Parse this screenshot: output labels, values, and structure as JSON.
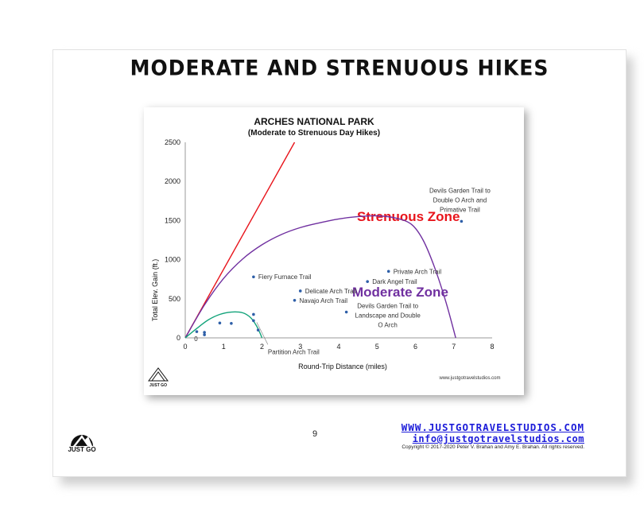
{
  "slide": {
    "title": "MODERATE AND STRENUOUS HIKES",
    "page_number": "9",
    "website": "WWW.JUSTGOTRAVELSTUDIOS.COM",
    "email": "info@justgotravelstudios.com",
    "copyright": "Copyright © 2017-2020 Peter V. Brahan and Amy E. Brahan.  All rights reserved.",
    "logo_text": "JUST GO"
  },
  "colors": {
    "strenuous": "#e8141b",
    "moderate": "#7030a0",
    "easy": "#12a37a",
    "points": "#2e5fa8",
    "link": "#1b1bd9"
  },
  "chart_data": {
    "type": "scatter",
    "title": "ARCHES NATIONAL PARK",
    "subtitle": "(Moderate to Strenuous Day Hikes)",
    "xlabel": "Round-Trip Distance (miles)",
    "ylabel": "Total Elev. Gain (ft.)",
    "xlim": [
      0,
      8
    ],
    "ylim": [
      0,
      2500
    ],
    "xticks": [
      "0",
      "1",
      "2",
      "3",
      "4",
      "5",
      "6",
      "7",
      "8"
    ],
    "yticks": [
      "0",
      "500",
      "1000",
      "1500",
      "2000",
      "2500"
    ],
    "grid": false,
    "watermark": "www.justgotravelstudios.com",
    "zones": [
      {
        "name": "Strenuous Zone",
        "color": "#e8141b"
      },
      {
        "name": "Moderate Zone",
        "color": "#7030a0"
      }
    ],
    "strenuous_line": [
      [
        0,
        0
      ],
      [
        2.85,
        2500
      ]
    ],
    "moderate_curve": [
      [
        0,
        0
      ],
      [
        0.5,
        420
      ],
      [
        1,
        760
      ],
      [
        1.5,
        1010
      ],
      [
        2,
        1190
      ],
      [
        2.5,
        1320
      ],
      [
        3,
        1410
      ],
      [
        3.5,
        1470
      ],
      [
        4,
        1520
      ],
      [
        4.5,
        1550
      ],
      [
        5,
        1560
      ],
      [
        5.5,
        1530
      ],
      [
        5.9,
        1450
      ],
      [
        6.2,
        1250
      ],
      [
        6.5,
        900
      ],
      [
        6.8,
        450
      ],
      [
        7.05,
        0
      ]
    ],
    "easy_curve": [
      [
        0,
        0
      ],
      [
        0.3,
        120
      ],
      [
        0.6,
        230
      ],
      [
        0.9,
        300
      ],
      [
        1.2,
        330
      ],
      [
        1.5,
        320
      ],
      [
        1.7,
        260
      ],
      [
        1.85,
        160
      ],
      [
        1.95,
        60
      ],
      [
        2.0,
        0
      ]
    ],
    "points": [
      {
        "x": 1.78,
        "y": 780,
        "label": "Fiery Furnace Trail"
      },
      {
        "x": 3.0,
        "y": 600,
        "label": "Delicate Arch Trail"
      },
      {
        "x": 2.85,
        "y": 480,
        "label": "Navajo Arch Trail"
      },
      {
        "x": 4.75,
        "y": 720,
        "label": "Dark Angel Trail"
      },
      {
        "x": 5.3,
        "y": 850,
        "label": "Private Arch Trail"
      },
      {
        "x": 4.2,
        "y": 330,
        "label": "Devils Garden Trail to Landscape and Double O Arch"
      },
      {
        "x": 7.2,
        "y": 1490,
        "label": "Devils Garden Trail to Double O Arch and Primative Trail"
      },
      {
        "x": 1.78,
        "y": 220,
        "label": "Partition Arch Trail"
      },
      {
        "x": 1.78,
        "y": 300,
        "label": ""
      },
      {
        "x": 1.9,
        "y": 100,
        "label": ""
      },
      {
        "x": 0.5,
        "y": 70,
        "label": ""
      },
      {
        "x": 0.5,
        "y": 40,
        "label": ""
      },
      {
        "x": 0.9,
        "y": 190,
        "label": ""
      },
      {
        "x": 1.2,
        "y": 185,
        "label": ""
      },
      {
        "x": 0.3,
        "y": 80,
        "label": ""
      },
      {
        "x": 0.15,
        "y": 0,
        "label": "0"
      }
    ]
  }
}
